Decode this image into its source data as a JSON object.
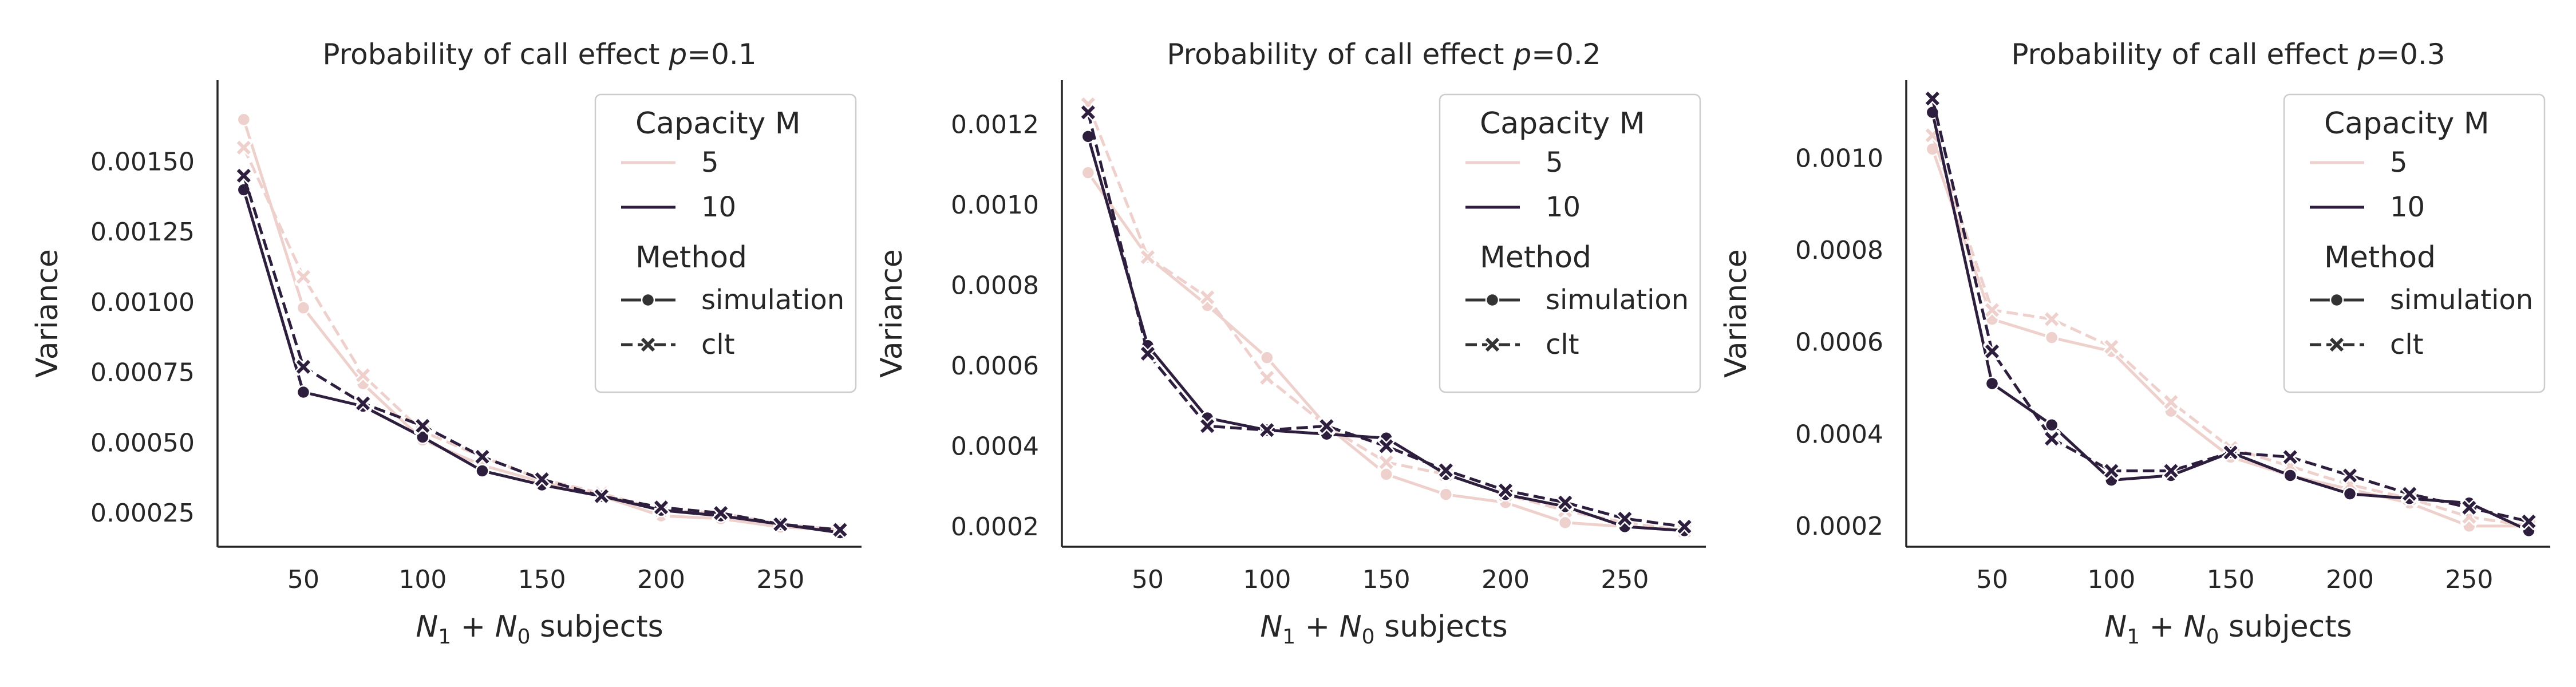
{
  "chart_data": [
    {
      "type": "line",
      "title_prefix": "Probability of call effect ",
      "title_var": "p",
      "title_suffix": "=0.1",
      "xlabel_var1": "N",
      "xlabel_sub1": "1",
      "xlabel_plus": " + ",
      "xlabel_var2": "N",
      "xlabel_sub2": "0",
      "xlabel_text": " subjects",
      "ylabel": "Variance",
      "xlim": [
        14,
        284
      ],
      "ylim": [
        0.00013,
        0.00179
      ],
      "xticks": [
        50,
        100,
        150,
        200,
        250
      ],
      "xtick_labels": [
        "50",
        "100",
        "150",
        "200",
        "250"
      ],
      "yticks": [
        0.00025,
        0.0005,
        0.00075,
        0.001,
        0.00125,
        0.0015
      ],
      "ytick_labels": [
        "0.00025",
        "0.00050",
        "0.00075",
        "0.00100",
        "0.00125",
        "0.00150"
      ],
      "x": [
        25,
        50,
        75,
        100,
        125,
        150,
        175,
        200,
        225,
        250,
        275
      ],
      "series": [
        {
          "name": "M=5 simulation",
          "capacity": "5",
          "method": "simulation",
          "color": "#eed0cc",
          "values": [
            0.00165,
            0.00098,
            0.00071,
            0.00051,
            0.00042,
            0.00036,
            0.00031,
            0.00024,
            0.00023,
            0.0002,
            0.00019
          ]
        },
        {
          "name": "M=5 clt",
          "capacity": "5",
          "method": "clt",
          "color": "#eed0cc",
          "values": [
            0.00155,
            0.00109,
            0.00074,
            0.00054,
            0.00045,
            0.00037,
            0.00032,
            0.00026,
            0.00025,
            0.00021,
            0.00019
          ]
        },
        {
          "name": "M=10 simulation",
          "capacity": "10",
          "method": "simulation",
          "color": "#2d1e3e",
          "values": [
            0.0014,
            0.00068,
            0.00063,
            0.00052,
            0.0004,
            0.00035,
            0.00031,
            0.00026,
            0.00024,
            0.00021,
            0.00018
          ]
        },
        {
          "name": "M=10 clt",
          "capacity": "10",
          "method": "clt",
          "color": "#2d1e3e",
          "values": [
            0.00145,
            0.00077,
            0.00064,
            0.00056,
            0.00045,
            0.00037,
            0.00031,
            0.00027,
            0.00025,
            0.00021,
            0.00019
          ]
        }
      ]
    },
    {
      "type": "line",
      "title_prefix": "Probability of call effect ",
      "title_var": "p",
      "title_suffix": "=0.2",
      "xlabel_var1": "N",
      "xlabel_sub1": "1",
      "xlabel_plus": " + ",
      "xlabel_var2": "N",
      "xlabel_sub2": "0",
      "xlabel_text": " subjects",
      "ylabel": "Variance",
      "xlim": [
        14,
        284
      ],
      "ylim": [
        0.00015,
        0.00131
      ],
      "xticks": [
        50,
        100,
        150,
        200,
        250
      ],
      "xtick_labels": [
        "50",
        "100",
        "150",
        "200",
        "250"
      ],
      "yticks": [
        0.0002,
        0.0004,
        0.0006,
        0.0008,
        0.001,
        0.0012
      ],
      "ytick_labels": [
        "0.0002",
        "0.0004",
        "0.0006",
        "0.0008",
        "0.0010",
        "0.0012"
      ],
      "x": [
        25,
        50,
        75,
        100,
        125,
        150,
        175,
        200,
        225,
        250,
        275
      ],
      "series": [
        {
          "name": "M=5 simulation",
          "capacity": "5",
          "method": "simulation",
          "color": "#eed0cc",
          "values": [
            0.00108,
            0.00087,
            0.00075,
            0.00062,
            0.00045,
            0.00033,
            0.00028,
            0.00026,
            0.00021,
            0.0002,
            0.00019
          ]
        },
        {
          "name": "M=5 clt",
          "capacity": "5",
          "method": "clt",
          "color": "#eed0cc",
          "values": [
            0.00125,
            0.00087,
            0.00077,
            0.00057,
            0.00045,
            0.00036,
            0.00033,
            0.00028,
            0.00024,
            0.00021,
            0.00019
          ]
        },
        {
          "name": "M=10 simulation",
          "capacity": "10",
          "method": "simulation",
          "color": "#2d1e3e",
          "values": [
            0.00117,
            0.00065,
            0.00047,
            0.00044,
            0.00043,
            0.00042,
            0.00033,
            0.00028,
            0.00025,
            0.0002,
            0.00019
          ]
        },
        {
          "name": "M=10 clt",
          "capacity": "10",
          "method": "clt",
          "color": "#2d1e3e",
          "values": [
            0.00123,
            0.00063,
            0.00045,
            0.00044,
            0.00045,
            0.0004,
            0.00034,
            0.00029,
            0.00026,
            0.00022,
            0.0002
          ]
        }
      ]
    },
    {
      "type": "line",
      "title_prefix": "Probability of call effect ",
      "title_var": "p",
      "title_suffix": "=0.3",
      "xlabel_var1": "N",
      "xlabel_sub1": "1",
      "xlabel_plus": " + ",
      "xlabel_var2": "N",
      "xlabel_sub2": "0",
      "xlabel_text": " subjects",
      "ylabel": "Variance",
      "xlim": [
        14,
        284
      ],
      "ylim": [
        0.000155,
        0.00117
      ],
      "xticks": [
        50,
        100,
        150,
        200,
        250
      ],
      "xtick_labels": [
        "50",
        "100",
        "150",
        "200",
        "250"
      ],
      "yticks": [
        0.0002,
        0.0004,
        0.0006,
        0.0008,
        0.001
      ],
      "ytick_labels": [
        "0.0002",
        "0.0004",
        "0.0006",
        "0.0008",
        "0.0010"
      ],
      "x": [
        25,
        50,
        75,
        100,
        125,
        150,
        175,
        200,
        225,
        250,
        275
      ],
      "series": [
        {
          "name": "M=5 simulation",
          "capacity": "5",
          "method": "simulation",
          "color": "#eed0cc",
          "values": [
            0.00102,
            0.00065,
            0.00061,
            0.00058,
            0.00045,
            0.00035,
            0.00031,
            0.00028,
            0.00025,
            0.0002,
            0.0002
          ]
        },
        {
          "name": "M=5 clt",
          "capacity": "5",
          "method": "clt",
          "color": "#eed0cc",
          "values": [
            0.00105,
            0.00067,
            0.00065,
            0.00059,
            0.00047,
            0.00037,
            0.00033,
            0.00029,
            0.00026,
            0.00022,
            0.0002
          ]
        },
        {
          "name": "M=10 simulation",
          "capacity": "10",
          "method": "simulation",
          "color": "#2d1e3e",
          "values": [
            0.0011,
            0.00051,
            0.00042,
            0.0003,
            0.00031,
            0.00036,
            0.00031,
            0.00027,
            0.00026,
            0.00025,
            0.00019
          ]
        },
        {
          "name": "M=10 clt",
          "capacity": "10",
          "method": "clt",
          "color": "#2d1e3e",
          "values": [
            0.00113,
            0.00058,
            0.00039,
            0.00032,
            0.00032,
            0.00036,
            0.00035,
            0.00031,
            0.00027,
            0.00024,
            0.00021
          ]
        }
      ]
    }
  ],
  "legend": {
    "placement": "top-right",
    "capacity_title": "Capacity M",
    "capacity_items": [
      {
        "label": "5",
        "color": "#eed0cc"
      },
      {
        "label": "10",
        "color": "#2d1e3e"
      }
    ],
    "method_title": "Method",
    "method_items": [
      {
        "label": "simulation",
        "style": "solid",
        "marker": "circle"
      },
      {
        "label": "clt",
        "style": "dashed",
        "marker": "x"
      }
    ],
    "method_color": "#333333"
  }
}
